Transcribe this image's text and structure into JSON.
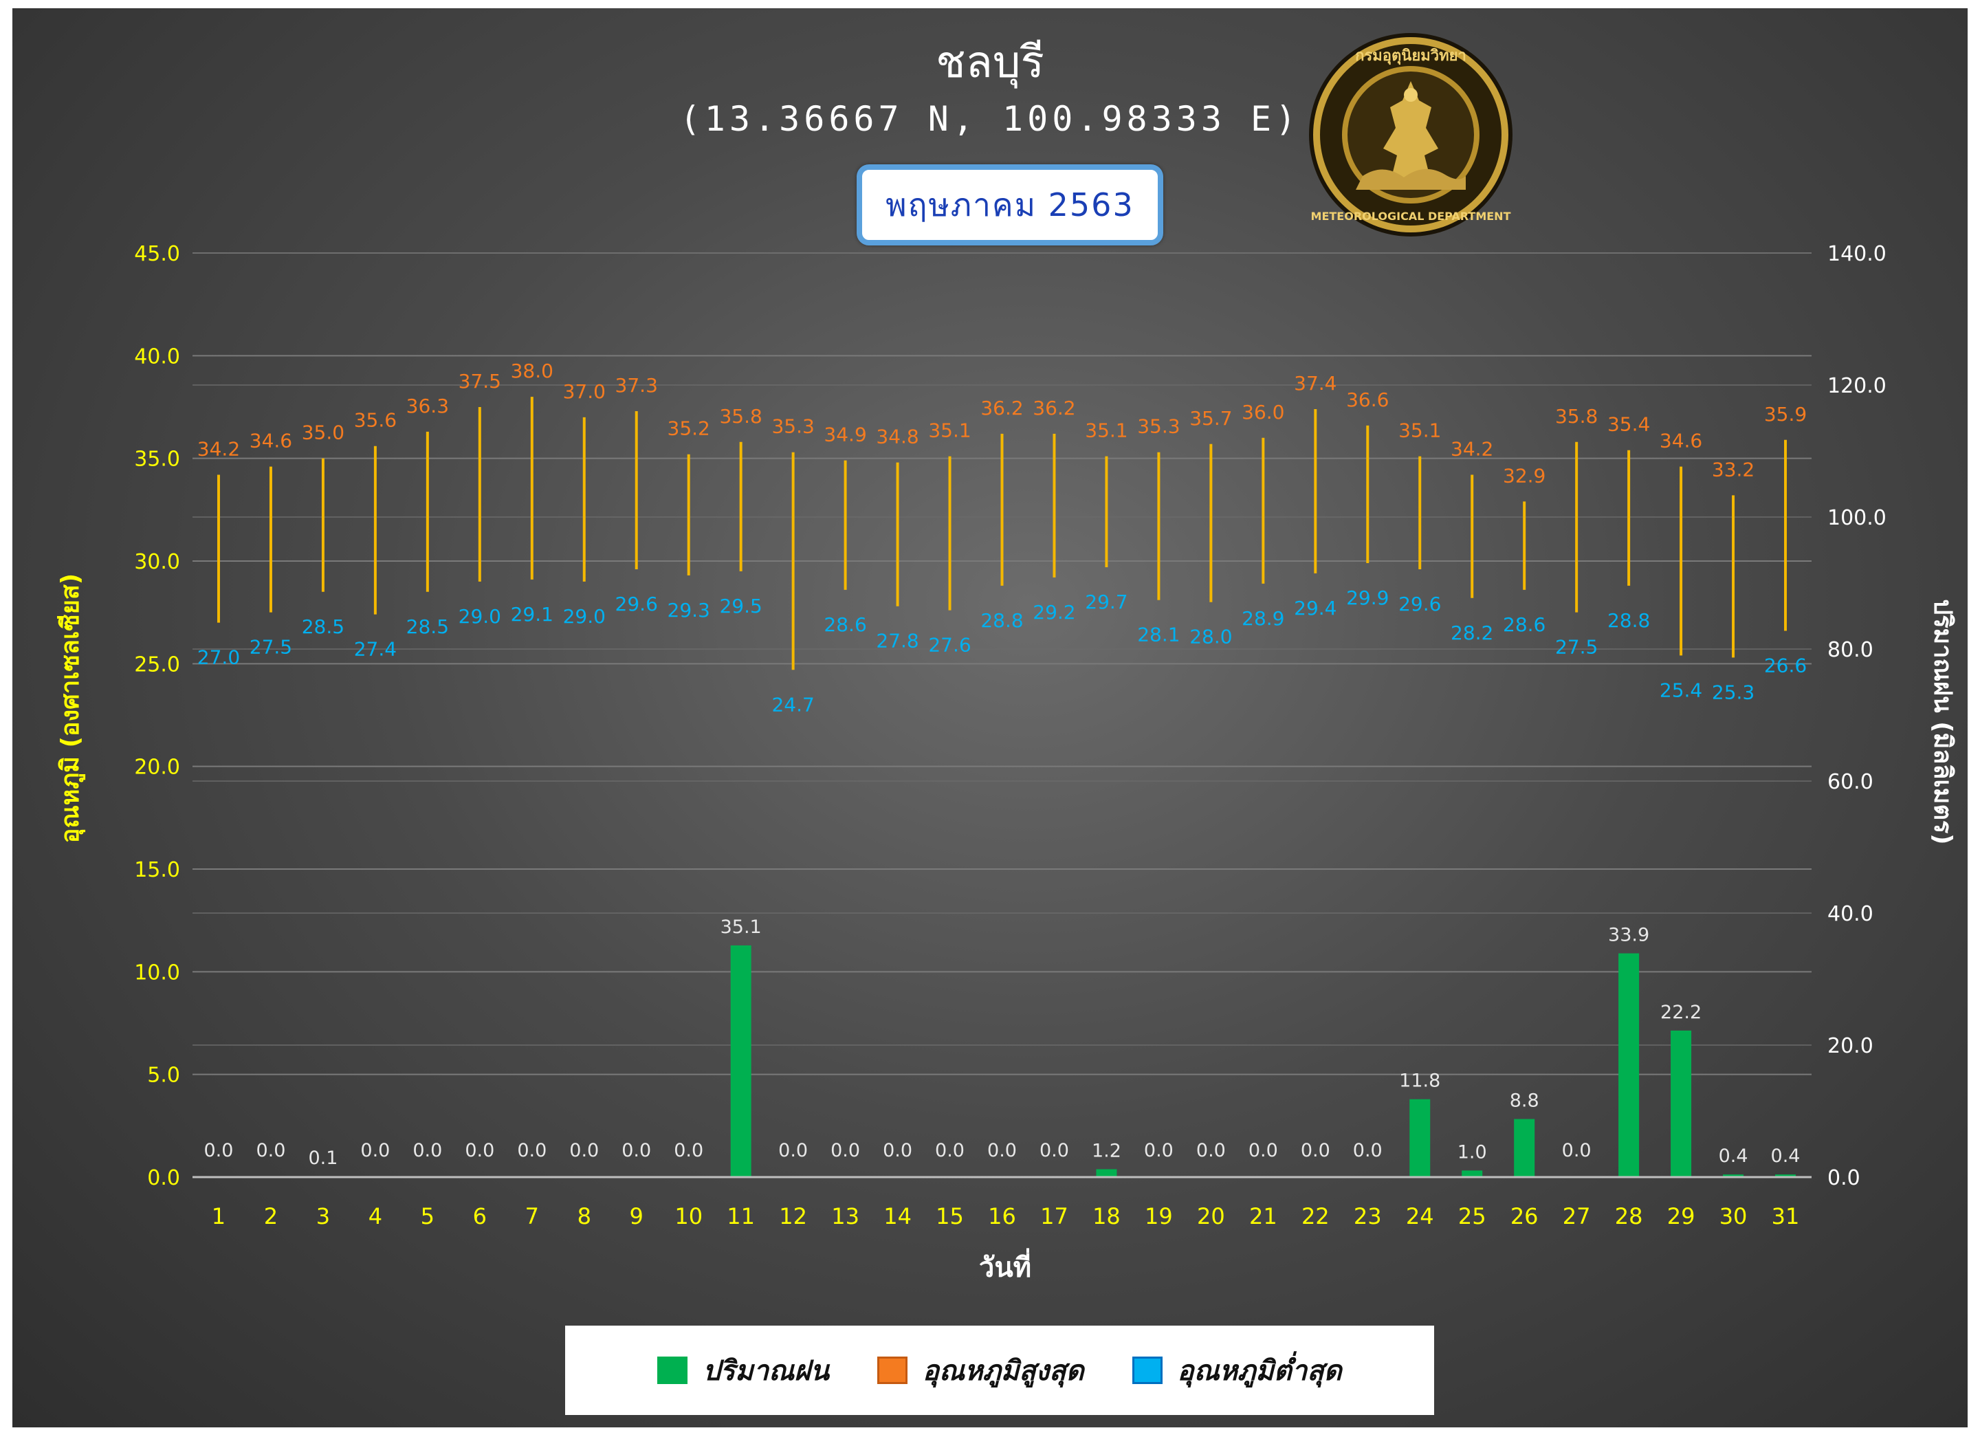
{
  "header": {
    "station": "ชลบุรี",
    "coordinates": "(13.36667 N, 100.98333 E)",
    "month_label": "พฤษภาคม 2563"
  },
  "logo": {
    "text_top": "กรมอุตุนิยมวิทยา",
    "text_bottom": "METEOROLOGICAL DEPARTMENT"
  },
  "legend": {
    "rain": "ปริมาณฝน",
    "max": "อุณหภูมิสูงสุด",
    "min": "อุณหภูมิต่ำสุด"
  },
  "colors": {
    "rain": "#00b050",
    "max_label": "#f47b20",
    "min_label": "#00b0f0",
    "range_line": "#f5b800",
    "left_axis": "#ffff00",
    "right_axis": "#ffffff"
  },
  "chart_data": {
    "type": "bar",
    "xlabel": "วันที่",
    "ylabel_left": "อุณหภูมิ (องศาเซลเซียส)",
    "ylabel_right": "ปริมาณฝน (มิลลิเมตร)",
    "ylim_left": [
      0,
      45
    ],
    "ylim_right": [
      0,
      140
    ],
    "left_ticks": [
      "0.0",
      "5.0",
      "10.0",
      "15.0",
      "20.0",
      "25.0",
      "30.0",
      "35.0",
      "40.0",
      "45.0"
    ],
    "right_ticks": [
      "0.0",
      "20.0",
      "40.0",
      "60.0",
      "80.0",
      "100.0",
      "120.0",
      "140.0"
    ],
    "grid": true,
    "legend_position": "bottom",
    "categories": [
      "1",
      "2",
      "3",
      "4",
      "5",
      "6",
      "7",
      "8",
      "9",
      "10",
      "11",
      "12",
      "13",
      "14",
      "15",
      "16",
      "17",
      "18",
      "19",
      "20",
      "21",
      "22",
      "23",
      "24",
      "25",
      "26",
      "27",
      "28",
      "29",
      "30",
      "31"
    ],
    "series": [
      {
        "name": "อุณหภูมิสูงสุด",
        "axis": "left",
        "values": [
          34.2,
          34.6,
          35.0,
          35.6,
          36.3,
          37.5,
          38.0,
          37.0,
          37.3,
          35.2,
          35.8,
          35.3,
          34.9,
          34.8,
          35.1,
          36.2,
          36.2,
          35.1,
          35.3,
          35.7,
          36.0,
          37.4,
          36.6,
          35.1,
          34.2,
          32.9,
          35.8,
          35.4,
          34.6,
          33.2,
          35.9
        ]
      },
      {
        "name": "อุณหภูมิต่ำสุด",
        "axis": "left",
        "values": [
          27.0,
          27.5,
          28.5,
          27.4,
          28.5,
          29.0,
          29.1,
          29.0,
          29.6,
          29.3,
          29.5,
          24.7,
          28.6,
          27.8,
          27.6,
          28.8,
          29.2,
          29.7,
          28.1,
          28.0,
          28.9,
          29.4,
          29.9,
          29.6,
          28.2,
          28.6,
          27.5,
          28.8,
          25.4,
          25.3,
          26.6
        ]
      },
      {
        "name": "ปริมาณฝน",
        "axis": "right",
        "values": [
          0.0,
          0.0,
          0.1,
          0.0,
          0.0,
          0.0,
          0.0,
          0.0,
          0.0,
          0.0,
          35.1,
          0.0,
          0.0,
          0.0,
          0.0,
          0.0,
          0.0,
          1.2,
          0.0,
          0.0,
          0.0,
          0.0,
          0.0,
          11.8,
          1.0,
          8.8,
          0.0,
          33.9,
          22.2,
          0.4,
          0.4
        ]
      }
    ]
  }
}
